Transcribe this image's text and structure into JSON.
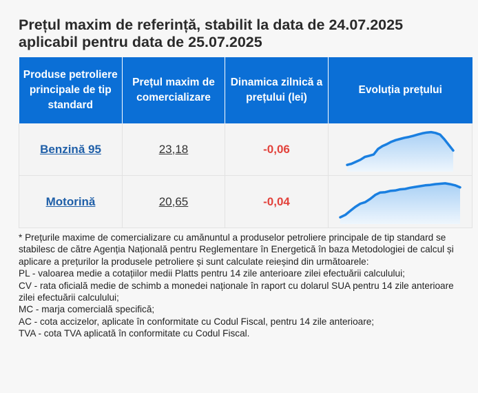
{
  "header": {
    "title_line1": "Prețul maxim de referință, stabilit la data de 24.07.2025",
    "title_line2": "aplicabil pentru data de 25.07.2025"
  },
  "table": {
    "columns": [
      "Produse petroliere principale de tip standard",
      "Prețul maxim de comercializare",
      "Dinamica zilnică a prețului (lei)",
      "Evoluția prețului"
    ],
    "rows": [
      {
        "product": "Benzină 95",
        "price": "23,18",
        "dynamics": "-0,06",
        "trend": [
          0.1,
          0.13,
          0.18,
          0.23,
          0.3,
          0.33,
          0.36,
          0.5,
          0.57,
          0.62,
          0.68,
          0.72,
          0.75,
          0.78,
          0.8,
          0.83,
          0.86,
          0.89,
          0.91,
          0.92,
          0.9,
          0.86,
          0.74,
          0.6,
          0.46
        ]
      },
      {
        "product": "Motorină",
        "price": "20,65",
        "dynamics": "-0,04",
        "trend": [
          0.1,
          0.16,
          0.26,
          0.36,
          0.44,
          0.48,
          0.56,
          0.66,
          0.72,
          0.73,
          0.76,
          0.77,
          0.8,
          0.81,
          0.84,
          0.86,
          0.88,
          0.9,
          0.91,
          0.93,
          0.94,
          0.95,
          0.93,
          0.9,
          0.85
        ]
      }
    ]
  },
  "colors": {
    "header_bg": "#0b6fd6",
    "link": "#1f5fa8",
    "negative": "#e2423b",
    "spark_line": "#1a7fe0",
    "spark_fill_top": "#a9d0f5",
    "spark_fill_bottom": "#eef6fd"
  },
  "notes": {
    "intro": "* Prețurile maxime de comercializare cu amănuntul a produselor petroliere principale de tip standard se stabilesc de către Agenția Națională pentru Reglementare în Energetică în baza Metodologiei de calcul și aplicare a prețurilor la produsele petroliere și sunt calculate reieșind din următoarele:",
    "items": [
      "PL - valoarea medie a cotațiilor medii Platts pentru 14 zile anterioare zilei efectuării calculului;",
      "CV - rata oficială medie de schimb a monedei naționale în raport cu dolarul SUA pentru 14 zile anterioare zilei efectuării calculului;",
      "MC - marja comercială specifică;",
      "AC - cota accizelor, aplicate în conformitate cu Codul Fiscal, pentru 14 zile anterioare;",
      "TVA - cota TVA aplicată în conformitate cu Codul Fiscal."
    ]
  }
}
